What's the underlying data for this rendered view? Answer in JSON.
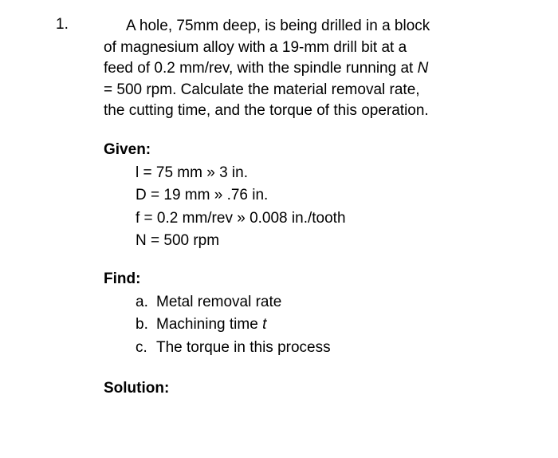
{
  "problem_number": "1.",
  "problem_statement": {
    "line1": "A hole, 75mm deep, is being drilled in a block",
    "line2": "of magnesium alloy with a 19-mm drill bit at a",
    "line3": "feed of 0.2 mm/rev, with the spindle running at ",
    "line3_italic": "N",
    "line4": "= 500 rpm. Calculate the material removal rate,",
    "line5": "the cutting time, and the torque of this operation."
  },
  "given": {
    "header": "Given:",
    "items": [
      "l = 75 mm » 3 in.",
      "D = 19 mm » .76 in.",
      "f = 0.2 mm/rev » 0.008 in./tooth",
      "N = 500 rpm"
    ]
  },
  "find": {
    "header": "Find:",
    "items": [
      {
        "letter": "a.",
        "text": "Metal removal rate"
      },
      {
        "letter": "b.",
        "text_pre": "Machining time ",
        "text_italic": "t"
      },
      {
        "letter": "c.",
        "text": "The torque in this process"
      }
    ]
  },
  "solution": {
    "header": "Solution:"
  },
  "styling": {
    "background_color": "#ffffff",
    "text_color": "#000000",
    "font_family": "Arial, Helvetica, sans-serif",
    "body_font_size": 19,
    "line_height": 1.4
  }
}
